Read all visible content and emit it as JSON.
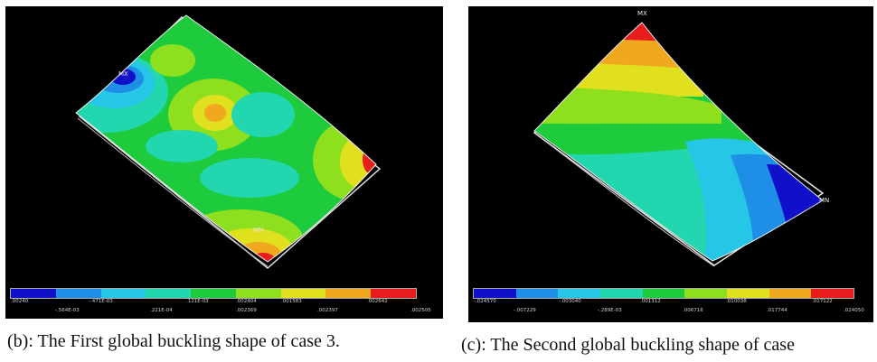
{
  "figures": [
    {
      "id": "b",
      "caption": "(b): The First global buckling shape of case 3.",
      "markers": [
        "MX",
        "MN"
      ],
      "colorbar": {
        "colors": [
          "#1010c8",
          "#1e8ee6",
          "#26c6e6",
          "#22d6b0",
          "#1dcb3c",
          "#8ee01e",
          "#e0e01e",
          "#f0a81e",
          "#e81c1c"
        ],
        "ticks_top": [
          ".00240",
          "-.471E-03",
          ".121E-03",
          ".002404",
          ".001583",
          ".002642"
        ],
        "ticks_bottom": [
          "-.564E-03",
          ".221E-04",
          ".002369",
          ".002397",
          ".002505"
        ]
      }
    },
    {
      "id": "c",
      "caption": "(c): The Second global buckling shape of case",
      "markers": [
        "MX",
        "MN"
      ],
      "colorbar": {
        "colors": [
          "#1010c8",
          "#1e8ee6",
          "#26c6e6",
          "#22d6b0",
          "#1dcb3c",
          "#8ee01e",
          "#e0e01e",
          "#f0a81e",
          "#e81c1c"
        ],
        "ticks_top": [
          "-.024570",
          "-.003040",
          ".001312",
          ".010038",
          ".017122"
        ],
        "ticks_bottom": [
          "-.007229",
          "-.289E-03",
          ".006716",
          ".017744",
          ".024050"
        ]
      }
    }
  ]
}
